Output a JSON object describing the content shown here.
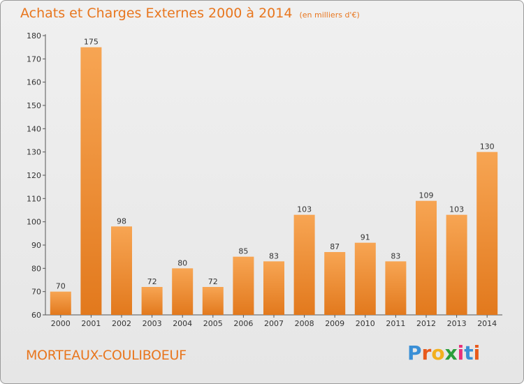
{
  "chart_data": {
    "type": "bar",
    "title": "Achats et Charges Externes 2000 à 2014",
    "unit_note": "(en milliers d'€)",
    "categories": [
      "2000",
      "2001",
      "2002",
      "2003",
      "2004",
      "2005",
      "2006",
      "2007",
      "2008",
      "2009",
      "2010",
      "2011",
      "2012",
      "2013",
      "2014"
    ],
    "values": [
      70,
      175,
      98,
      72,
      80,
      72,
      85,
      83,
      103,
      87,
      91,
      83,
      109,
      103,
      130
    ],
    "ylim": [
      60,
      180
    ],
    "yticks": [
      60,
      70,
      80,
      90,
      100,
      110,
      120,
      130,
      140,
      150,
      160,
      170,
      180
    ],
    "grid": false,
    "bar_color": "#f0902e"
  },
  "footer": {
    "commune": "MORTEAUX-COULIBOEUF"
  },
  "logo": {
    "letters": [
      "P",
      "r",
      "o",
      "x",
      "i",
      "t",
      "i"
    ],
    "colors": [
      "#3a8fd6",
      "#e85a1c",
      "#f2b01e",
      "#2a9e3a",
      "#e8307a",
      "#3a8fd6",
      "#e85a1c"
    ]
  }
}
